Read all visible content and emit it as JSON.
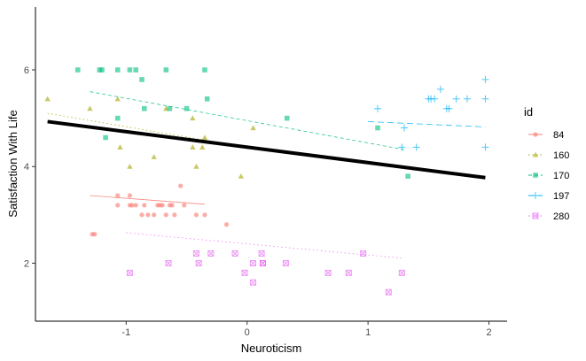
{
  "chart_data": {
    "type": "scatter",
    "xlabel": "Neuroticism",
    "ylabel": "Satisfaction With Life",
    "xlim": [
      -1.75,
      2.15
    ],
    "ylim": [
      0.8,
      7.3
    ],
    "x_ticks": [
      -1,
      0,
      1,
      2
    ],
    "x_tick_labels": [
      "-1",
      "0",
      "1",
      "2"
    ],
    "y_ticks": [
      2,
      4,
      6
    ],
    "y_tick_labels": [
      "2",
      "4",
      "6"
    ],
    "grid": false,
    "legend": {
      "title": "id",
      "position": "right"
    },
    "series": [
      {
        "name": "84",
        "color": "#F8766D",
        "marker": "circle",
        "line_style": "solid",
        "x": [
          -1.28,
          -1.26,
          -1.07,
          -1.07,
          -0.97,
          -0.97,
          -0.95,
          -0.92,
          -0.87,
          -0.85,
          -0.82,
          -0.77,
          -0.74,
          -0.72,
          -0.7,
          -0.67,
          -0.64,
          -0.62,
          -0.6,
          -0.55,
          -0.52,
          -0.42,
          -0.35,
          -0.17
        ],
        "y": [
          2.6,
          2.6,
          3.4,
          3.2,
          3.4,
          3.2,
          3.2,
          3.2,
          3.0,
          3.2,
          3.0,
          3.0,
          3.2,
          3.2,
          3.2,
          3.0,
          3.2,
          3.2,
          3.0,
          3.6,
          3.2,
          3.0,
          3.0,
          2.8
        ],
        "fit": {
          "x": [
            -1.3,
            -0.35
          ],
          "y": [
            3.4,
            3.22
          ]
        }
      },
      {
        "name": "160",
        "color": "#A3A500",
        "marker": "triangle",
        "line_style": "dotted",
        "x": [
          -1.65,
          -1.3,
          -1.07,
          -1.05,
          -0.97,
          -0.77,
          -0.67,
          -0.45,
          -0.45,
          -0.42,
          -0.37,
          -0.35,
          0.05,
          -0.05
        ],
        "y": [
          5.4,
          5.2,
          5.4,
          4.4,
          4.0,
          4.2,
          5.2,
          5.0,
          4.4,
          4.0,
          4.4,
          4.6,
          4.8,
          3.8
        ],
        "fit": {
          "x": [
            -1.65,
            0.05
          ],
          "y": [
            5.1,
            4.38
          ]
        }
      },
      {
        "name": "170",
        "color": "#00BF7D",
        "marker": "square",
        "line_style": "dashed",
        "x": [
          -1.4,
          -1.22,
          -1.2,
          -1.07,
          -0.97,
          -0.92,
          -0.87,
          -0.85,
          -0.67,
          -0.64,
          -0.5,
          -0.35,
          -0.33,
          -1.17,
          -1.07,
          0.33,
          1.08,
          1.33
        ],
        "y": [
          6.0,
          6.0,
          6.0,
          6.0,
          6.0,
          6.0,
          5.8,
          5.2,
          6.0,
          5.2,
          5.2,
          6.0,
          5.4,
          4.6,
          5.0,
          5.0,
          4.8,
          3.8
        ],
        "fit": {
          "x": [
            -1.3,
            1.3
          ],
          "y": [
            5.55,
            4.35
          ]
        }
      },
      {
        "name": "197",
        "color": "#00B0F6",
        "marker": "plus",
        "line_style": "longdash",
        "x": [
          1.08,
          1.28,
          1.3,
          1.4,
          1.5,
          1.52,
          1.55,
          1.6,
          1.65,
          1.67,
          1.73,
          1.82,
          1.97,
          1.97,
          1.97
        ],
        "y": [
          5.2,
          4.4,
          4.8,
          4.4,
          5.4,
          5.4,
          5.4,
          5.6,
          5.2,
          5.2,
          5.4,
          5.4,
          5.8,
          5.4,
          4.4
        ],
        "fit": {
          "x": [
            1.0,
            1.97
          ],
          "y": [
            4.93,
            4.82
          ]
        }
      },
      {
        "name": "280",
        "color": "#E76BF3",
        "marker": "boxcross",
        "line_style": "dotted",
        "x": [
          -0.97,
          -0.65,
          -0.42,
          -0.4,
          -0.3,
          -0.1,
          -0.02,
          0.05,
          0.05,
          0.12,
          0.13,
          0.13,
          0.32,
          0.67,
          0.84,
          0.96,
          1.17,
          1.28
        ],
        "y": [
          1.8,
          2.0,
          2.2,
          2.0,
          2.2,
          2.2,
          1.8,
          2.0,
          1.6,
          2.2,
          2.0,
          2.0,
          2.0,
          1.8,
          1.8,
          2.2,
          1.4,
          1.8
        ],
        "fit": {
          "x": [
            -1.0,
            1.3
          ],
          "y": [
            2.63,
            2.1
          ]
        }
      }
    ],
    "overall_fit": {
      "color": "#000000",
      "x": [
        -1.65,
        1.97
      ],
      "y": [
        4.93,
        3.77
      ]
    }
  }
}
